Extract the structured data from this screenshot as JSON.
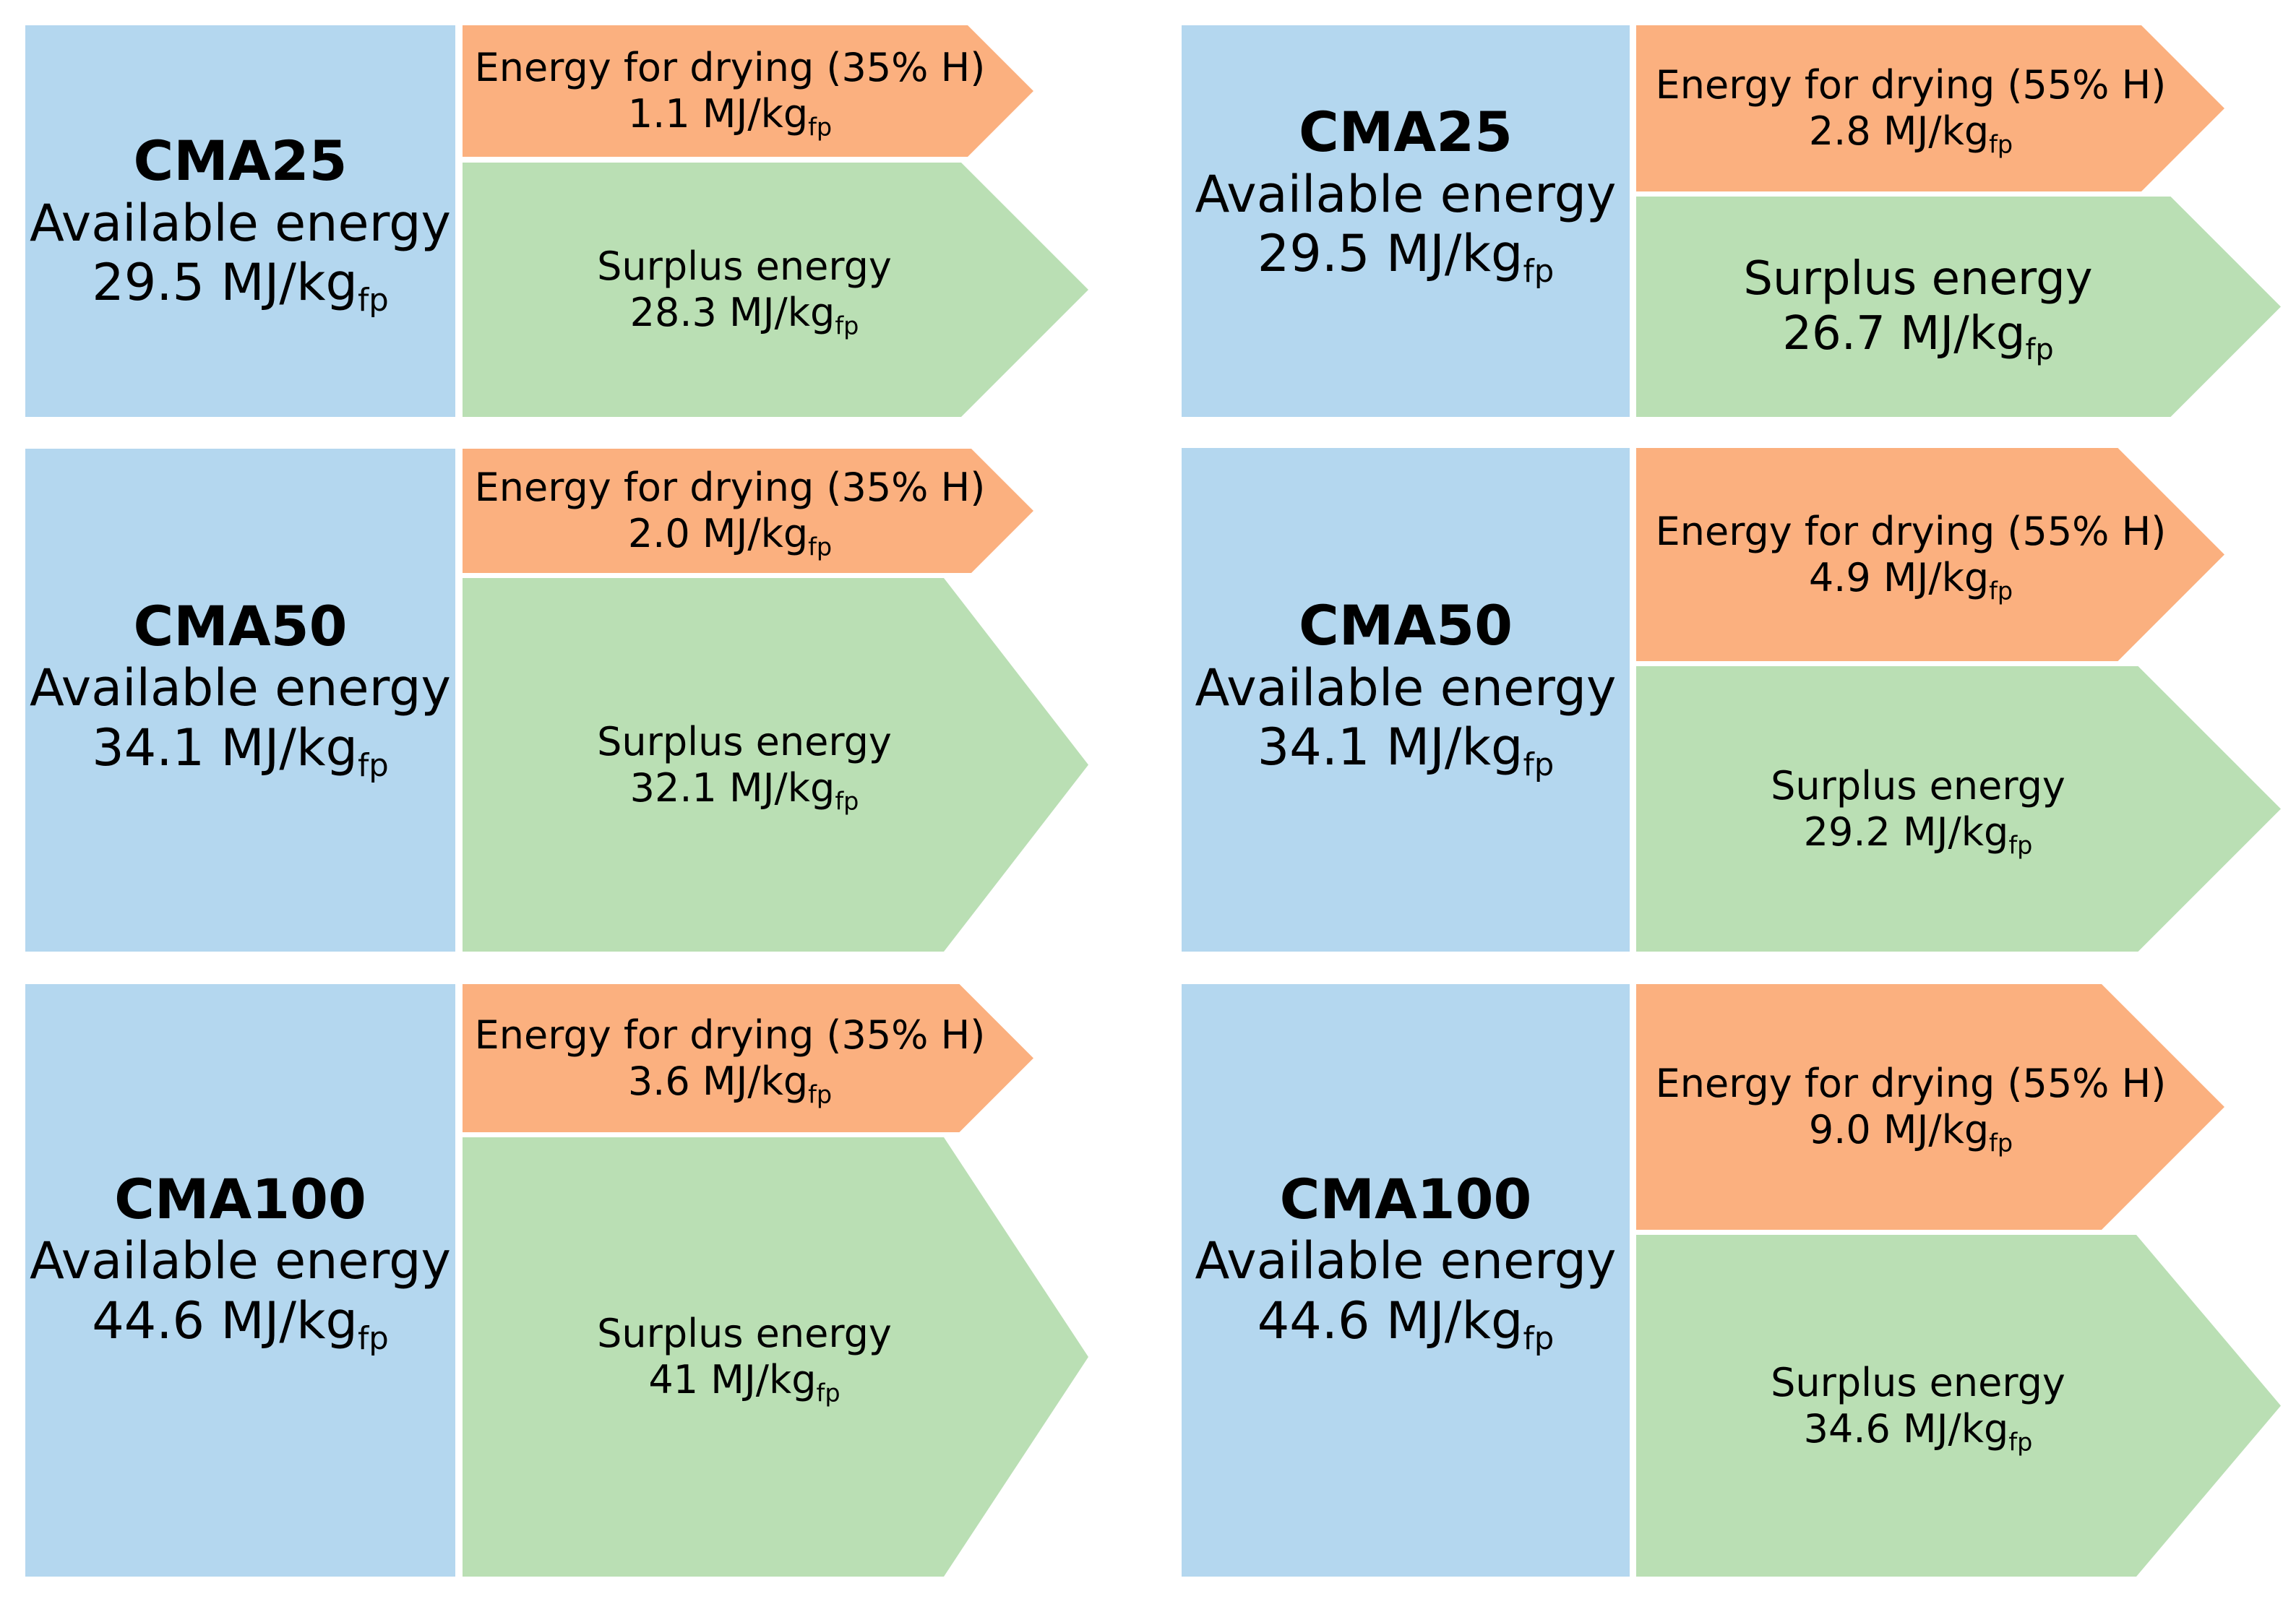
{
  "colors": {
    "available_box": "#b4d7ef",
    "drying_arrow": "#fbb07f",
    "surplus_arrow": "#badfb4"
  },
  "panels": [
    {
      "name": "CMA25",
      "available_label": "Available energy",
      "available_value": "29.5 MJ/kg",
      "unit_subscript": "fp",
      "drying_label": "Energy for drying (35% H)",
      "drying_value": "1.1 MJ/kg",
      "surplus_label": "Surplus energy",
      "surplus_value": "28.3 MJ/kg"
    },
    {
      "name": "CMA25",
      "available_label": "Available energy",
      "available_value": "29.5 MJ/kg",
      "unit_subscript": "fp",
      "drying_label": "Energy for drying (55% H)",
      "drying_value": "2.8 MJ/kg",
      "surplus_label": "Surplus energy",
      "surplus_value": "26.7 MJ/kg"
    },
    {
      "name": "CMA50",
      "available_label": "Available energy",
      "available_value": "34.1 MJ/kg",
      "unit_subscript": "fp",
      "drying_label": "Energy for drying (35% H)",
      "drying_value": "2.0 MJ/kg",
      "surplus_label": "Surplus energy",
      "surplus_value": "32.1 MJ/kg"
    },
    {
      "name": "CMA50",
      "available_label": "Available energy",
      "available_value": "34.1 MJ/kg",
      "unit_subscript": "fp",
      "drying_label": "Energy for drying (55% H)",
      "drying_value": "4.9 MJ/kg",
      "surplus_label": "Surplus energy",
      "surplus_value": "29.2 MJ/kg"
    },
    {
      "name": "CMA100",
      "available_label": "Available energy",
      "available_value": "44.6 MJ/kg",
      "unit_subscript": "fp",
      "drying_label": "Energy for drying (35% H)",
      "drying_value": "3.6 MJ/kg",
      "surplus_label": "Surplus energy",
      "surplus_value": "41 MJ/kg"
    },
    {
      "name": "CMA100",
      "available_label": "Available energy",
      "available_value": "44.6 MJ/kg",
      "unit_subscript": "fp",
      "drying_label": "Energy for drying (55% H)",
      "drying_value": "9.0 MJ/kg",
      "surplus_label": "Surplus energy",
      "surplus_value": "34.6 MJ/kg"
    }
  ]
}
